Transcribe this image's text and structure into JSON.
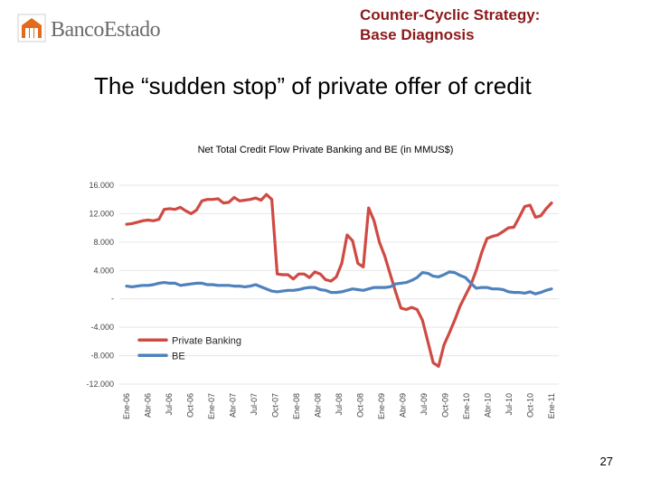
{
  "header": {
    "brand": "BancoEstado",
    "title_line1": "Counter-Cyclic Strategy:",
    "title_line2": "Base Diagnosis"
  },
  "slide": {
    "title": "The “sudden stop” of private offer of credit",
    "page_number": "27"
  },
  "colors": {
    "private": "#cf4a43",
    "be": "#4f81bd",
    "header": "#8b1a1a",
    "logo_accent": "#e36b1e"
  },
  "chart_data": {
    "type": "line",
    "title": "Net Total Credit Flow Private Banking and BE (in MMUS$)",
    "xlabel": "",
    "ylabel": "",
    "ylim": [
      -12000,
      16000
    ],
    "yticks": [
      16000,
      12000,
      8000,
      4000,
      0,
      -4000,
      -8000,
      -12000
    ],
    "ytick_labels": [
      "16.000",
      "12.000",
      "8.000",
      "4.000",
      "-",
      "-4.000",
      "-8.000",
      "-12.000"
    ],
    "xtick_labels": [
      "Ene-06",
      "Abr-06",
      "Jul-06",
      "Oct-06",
      "Ene-07",
      "Abr-07",
      "Jul-07",
      "Oct-07",
      "Ene-08",
      "Abr-08",
      "Jul-08",
      "Oct-08",
      "Ene-09",
      "Abr-09",
      "Jul-09",
      "Oct-09",
      "Ene-10",
      "Abr-10",
      "Jul-10",
      "Oct-10",
      "Ene-11"
    ],
    "grid": true,
    "legend_position": "bottom-left",
    "series": [
      {
        "name": "Private Banking",
        "values": [
          10500,
          10600,
          10800,
          11000,
          11100,
          11000,
          11200,
          12600,
          12700,
          12600,
          12900,
          12400,
          12000,
          12500,
          13800,
          14000,
          14000,
          14100,
          13500,
          13600,
          14300,
          13800,
          13900,
          14000,
          14200,
          13900,
          14700,
          14000,
          3500,
          3400,
          3400,
          2800,
          3500,
          3500,
          3000,
          3800,
          3500,
          2700,
          2500,
          3100,
          5000,
          9000,
          8200,
          5000,
          4500,
          12800,
          11000,
          8000,
          6000,
          3500,
          1000,
          -1300,
          -1500,
          -1200,
          -1500,
          -3000,
          -6000,
          -9000,
          -9500,
          -6500,
          -4800,
          -3000,
          -1000,
          500,
          2000,
          4000,
          6500,
          8500,
          8800,
          9000,
          9500,
          10000,
          10100,
          11500,
          13000,
          13200,
          11500,
          11700,
          12700,
          13500
        ]
      },
      {
        "name": "BE",
        "values": [
          1800,
          1700,
          1800,
          1900,
          1900,
          2000,
          2200,
          2300,
          2200,
          2200,
          1900,
          2000,
          2100,
          2200,
          2200,
          2000,
          2000,
          1900,
          1900,
          1900,
          1800,
          1800,
          1700,
          1800,
          2000,
          1700,
          1400,
          1100,
          1000,
          1100,
          1200,
          1200,
          1300,
          1500,
          1600,
          1600,
          1300,
          1200,
          900,
          900,
          1000,
          1200,
          1400,
          1300,
          1200,
          1400,
          1600,
          1600,
          1600,
          1700,
          2100,
          2200,
          2300,
          2600,
          3000,
          3700,
          3600,
          3200,
          3100,
          3400,
          3800,
          3700,
          3300,
          3000,
          2200,
          1500,
          1600,
          1600,
          1400,
          1400,
          1300,
          1000,
          900,
          900,
          800,
          1000,
          700,
          900,
          1200,
          1400
        ]
      }
    ]
  }
}
